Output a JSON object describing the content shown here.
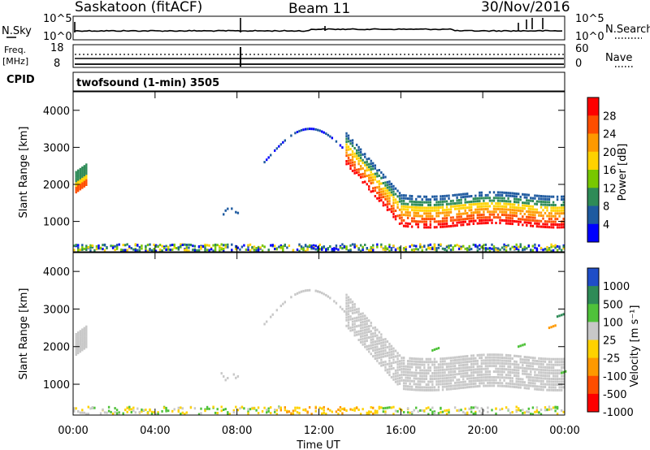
{
  "header": {
    "station": "Saskatoon (fitACF)",
    "beam": "Beam 11",
    "date": "30/Nov/2016"
  },
  "noise_panel": {
    "left_label": "N.Sky",
    "right_label": "N.Search",
    "left_ticks": [
      "10^5",
      "10^0"
    ],
    "right_ticks": [
      "10^5",
      "10^0"
    ]
  },
  "freq_panel": {
    "left_label": "Freq.",
    "left_unit": "[MHz]",
    "right_label": "Nave",
    "left_ticks": [
      "18",
      "8"
    ],
    "right_ticks": [
      "60",
      "0"
    ]
  },
  "cpid": {
    "label": "CPID",
    "value": "twofsound (1-min) 3505"
  },
  "chart_data": [
    {
      "type": "heatmap",
      "title": "",
      "xlabel": "",
      "ylabel": "Slant Range [km]",
      "x_ticks": [
        "00:00",
        "04:00",
        "08:00",
        "12:00",
        "16:00",
        "20:00",
        "00:00"
      ],
      "xlim_hours": [
        0,
        24
      ],
      "y_ticks": [
        1000,
        2000,
        3000,
        4000
      ],
      "ylim_km": [
        180,
        4500
      ],
      "colorbar": {
        "label": "Power [dB]",
        "ticks": [
          "28",
          "24",
          "20",
          "16",
          "12",
          "8",
          "4"
        ],
        "colors": [
          "#ff0000",
          "#ff4e00",
          "#ff9900",
          "#ffd200",
          "#78c800",
          "#2e8b57",
          "#1e5aa0",
          "#0000ff"
        ]
      },
      "features": [
        {
          "name": "near-range scatter",
          "hours": [
            0.0,
            24.0
          ],
          "range_km": [
            180,
            400
          ]
        },
        {
          "name": "early patch",
          "hours": [
            0.0,
            0.7
          ],
          "range_km": [
            1700,
            2350
          ]
        },
        {
          "name": "evening band",
          "hours": [
            14.3,
            24.0
          ],
          "range_km": [
            800,
            1900
          ]
        }
      ]
    },
    {
      "type": "heatmap",
      "title": "",
      "xlabel": "Time UT",
      "ylabel": "Slant Range [km]",
      "x_ticks": [
        "00:00",
        "04:00",
        "08:00",
        "12:00",
        "16:00",
        "20:00",
        "00:00"
      ],
      "xlim_hours": [
        0,
        24
      ],
      "y_ticks": [
        1000,
        2000,
        3000,
        4000
      ],
      "ylim_km": [
        180,
        4500
      ],
      "colorbar": {
        "label": "Velocity [m s⁻¹]",
        "ticks": [
          "1000",
          "500",
          "100",
          "25",
          "-25",
          "-100",
          "-500",
          "-1000"
        ],
        "colors": [
          "#1f4ec8",
          "#2e8b57",
          "#4fc23a",
          "#c8c8c8",
          "#ffd200",
          "#ff9900",
          "#ff4e00",
          "#ff0000"
        ]
      },
      "ground_scatter_color": "#c8c8c8"
    }
  ]
}
